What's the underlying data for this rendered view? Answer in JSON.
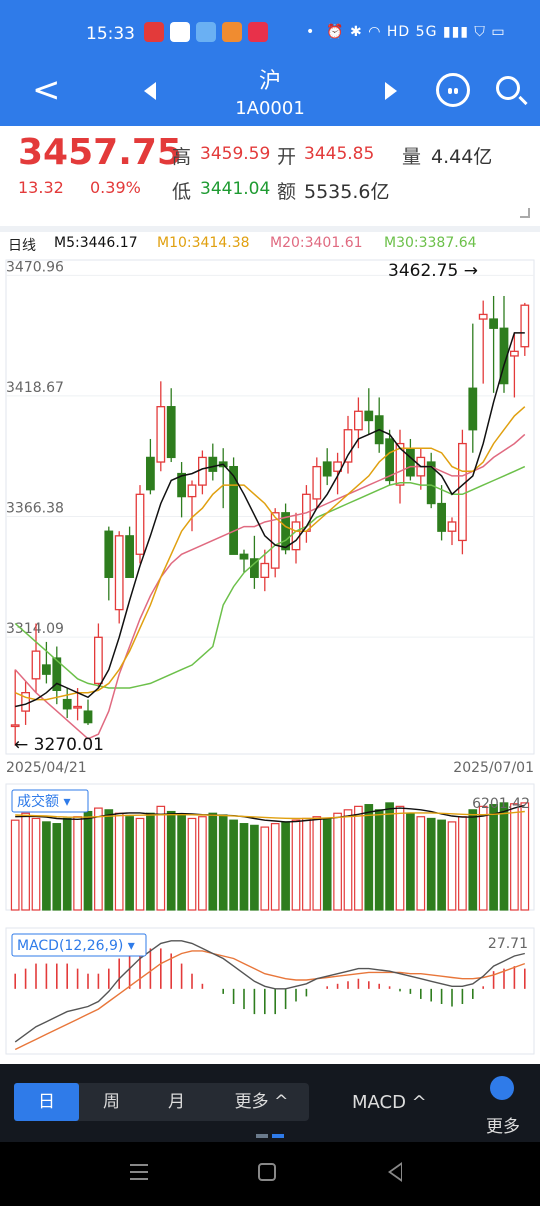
{
  "status": {
    "time": "15:33",
    "signal": "HD 5G",
    "dot": "•"
  },
  "header": {
    "title": "沪",
    "code": "1A0001"
  },
  "quote": {
    "price": "3457.75",
    "change": "13.32",
    "change_pct": "0.39%",
    "high_label": "高",
    "high": "3459.59",
    "open_label": "开",
    "open": "3445.85",
    "volume_label": "量",
    "volume": "4.44亿",
    "low_label": "低",
    "low": "3441.04",
    "amount_label": "额",
    "amount": "5535.6亿"
  },
  "ma": {
    "period": "日线",
    "m5": "M5:3446.17",
    "m10": "M10:3414.38",
    "m20": "M20:3401.61",
    "m30": "M30:3387.64"
  },
  "colors": {
    "m5": "#111111",
    "m10": "#e0a010",
    "m20": "#e06a80",
    "m30": "#6cc04a",
    "up": "#e33a3a",
    "down": "#2e7d1e",
    "accent": "#2f7be9"
  },
  "chart_data": [
    {
      "type": "candlestick",
      "y_ticks": [
        "3470.96",
        "3418.67",
        "3366.38",
        "3314.09"
      ],
      "ylim": [
        3266,
        3475
      ],
      "x_ticks": [
        "2025/04/21",
        "2025/07/01"
      ],
      "annotations": {
        "high": "3462.75",
        "low": "3270.01"
      },
      "candles": [
        [
          3276,
          3300,
          3267,
          3276
        ],
        [
          3282,
          3295,
          3276,
          3290
        ],
        [
          3296,
          3320,
          3290,
          3308
        ],
        [
          3302,
          3312,
          3294,
          3298
        ],
        [
          3305,
          3310,
          3285,
          3291
        ],
        [
          3287,
          3292,
          3279,
          3283
        ],
        [
          3284,
          3292,
          3278,
          3284
        ],
        [
          3282,
          3287,
          3276,
          3277
        ],
        [
          3294,
          3320,
          3292,
          3314
        ],
        [
          3360,
          3362,
          3330,
          3340
        ],
        [
          3326,
          3360,
          3320,
          3358
        ],
        [
          3358,
          3362,
          3340,
          3340
        ],
        [
          3350,
          3380,
          3346,
          3376
        ],
        [
          3392,
          3400,
          3376,
          3378
        ],
        [
          3390,
          3425,
          3386,
          3414
        ],
        [
          3414,
          3422,
          3390,
          3392
        ],
        [
          3385,
          3390,
          3366,
          3375
        ],
        [
          3375,
          3382,
          3360,
          3380
        ],
        [
          3380,
          3395,
          3376,
          3392
        ],
        [
          3392,
          3398,
          3382,
          3386
        ],
        [
          3390,
          3396,
          3370,
          3388
        ],
        [
          3388,
          3392,
          3350,
          3350
        ],
        [
          3350,
          3352,
          3342,
          3348
        ],
        [
          3348,
          3358,
          3335,
          3340
        ],
        [
          3340,
          3352,
          3334,
          3346
        ],
        [
          3344,
          3370,
          3340,
          3368
        ],
        [
          3368,
          3372,
          3350,
          3352
        ],
        [
          3352,
          3368,
          3346,
          3364
        ],
        [
          3360,
          3380,
          3355,
          3376
        ],
        [
          3374,
          3392,
          3370,
          3388
        ],
        [
          3390,
          3396,
          3380,
          3384
        ],
        [
          3386,
          3394,
          3376,
          3390
        ],
        [
          3390,
          3410,
          3385,
          3404
        ],
        [
          3404,
          3418,
          3396,
          3412
        ],
        [
          3412,
          3422,
          3402,
          3408
        ],
        [
          3410,
          3418,
          3394,
          3398
        ],
        [
          3400,
          3404,
          3380,
          3382
        ],
        [
          3380,
          3404,
          3372,
          3398
        ],
        [
          3396,
          3400,
          3382,
          3384
        ],
        [
          3384,
          3396,
          3378,
          3392
        ],
        [
          3390,
          3394,
          3370,
          3372
        ],
        [
          3372,
          3380,
          3356,
          3360
        ],
        [
          3360,
          3366,
          3354,
          3364
        ],
        [
          3356,
          3404,
          3350,
          3398
        ],
        [
          3422,
          3450,
          3394,
          3404
        ],
        [
          3452,
          3460,
          3424,
          3454
        ],
        [
          3452,
          3462,
          3420,
          3448
        ],
        [
          3448,
          3462,
          3420,
          3424
        ],
        [
          3436,
          3446,
          3418,
          3438
        ],
        [
          3440,
          3459,
          3436,
          3458
        ]
      ],
      "ma5": [
        3284,
        3285,
        3287,
        3290,
        3294,
        3292,
        3290,
        3288,
        3292,
        3300,
        3314,
        3330,
        3345,
        3358,
        3372,
        3382,
        3384,
        3385,
        3387,
        3388,
        3389,
        3384,
        3376,
        3367,
        3358,
        3354,
        3353,
        3356,
        3362,
        3370,
        3376,
        3384,
        3393,
        3400,
        3402,
        3404,
        3402,
        3396,
        3392,
        3388,
        3388,
        3384,
        3376,
        3380,
        3384,
        3398,
        3416,
        3432,
        3446,
        3446
      ],
      "ma10": [
        3290,
        3288,
        3287,
        3287,
        3288,
        3289,
        3290,
        3290,
        3291,
        3294,
        3300,
        3308,
        3318,
        3328,
        3340,
        3350,
        3360,
        3366,
        3370,
        3376,
        3380,
        3380,
        3380,
        3376,
        3372,
        3366,
        3362,
        3360,
        3360,
        3364,
        3368,
        3372,
        3376,
        3380,
        3384,
        3390,
        3394,
        3396,
        3396,
        3396,
        3396,
        3394,
        3388,
        3386,
        3386,
        3390,
        3398,
        3404,
        3410,
        3414
      ],
      "ma20": [
        3300,
        3295,
        3290,
        3286,
        3282,
        3278,
        3274,
        3270,
        3272,
        3282,
        3298,
        3310,
        3322,
        3332,
        3340,
        3346,
        3350,
        3352,
        3354,
        3356,
        3358,
        3360,
        3362,
        3362,
        3364,
        3365,
        3366,
        3367,
        3368,
        3370,
        3372,
        3374,
        3376,
        3378,
        3380,
        3382,
        3384,
        3386,
        3388,
        3388,
        3388,
        3386,
        3384,
        3384,
        3386,
        3388,
        3392,
        3395,
        3398,
        3402
      ],
      "ma30": [
        3320,
        3316,
        3312,
        3308,
        3304,
        3300,
        3296,
        3294,
        3293,
        3292,
        3292,
        3292,
        3293,
        3294,
        3296,
        3298,
        3300,
        3302,
        3306,
        3310,
        3328,
        3336,
        3342,
        3346,
        3350,
        3354,
        3356,
        3360,
        3362,
        3366,
        3368,
        3370,
        3372,
        3374,
        3376,
        3378,
        3380,
        3381,
        3381,
        3380,
        3380,
        3378,
        3376,
        3376,
        3378,
        3380,
        3382,
        3384,
        3386,
        3388
      ]
    },
    {
      "type": "bar",
      "title": "成交额",
      "value_label": "6201.42",
      "values": [
        5200,
        5600,
        5300,
        5100,
        5000,
        5300,
        5400,
        5700,
        5900,
        5800,
        5600,
        5400,
        5300,
        5600,
        6000,
        5700,
        5500,
        5300,
        5400,
        5600,
        5500,
        5200,
        5000,
        4900,
        4800,
        5000,
        5100,
        5200,
        5300,
        5400,
        5300,
        5600,
        5800,
        6000,
        6100,
        5800,
        6200,
        6000,
        5600,
        5400,
        5300,
        5200,
        5100,
        5400,
        5800,
        6000,
        6100,
        6200,
        6150,
        6201
      ],
      "series": [
        {
          "name": "MA5",
          "values": [
            5400,
            5420,
            5420,
            5380,
            5300,
            5260,
            5250,
            5300,
            5400,
            5500,
            5580,
            5620,
            5620,
            5560,
            5540,
            5560,
            5580,
            5560,
            5520,
            5500,
            5480,
            5460,
            5400,
            5300,
            5200,
            5150,
            5100,
            5120,
            5180,
            5240,
            5300,
            5360,
            5440,
            5540,
            5660,
            5760,
            5860,
            5900,
            5860,
            5800,
            5700,
            5560,
            5440,
            5380,
            5380,
            5440,
            5560,
            5700,
            5900,
            6060
          ]
        },
        {
          "name": "MA10",
          "values": [
            5500,
            5480,
            5460,
            5440,
            5400,
            5380,
            5370,
            5380,
            5400,
            5430,
            5460,
            5480,
            5490,
            5500,
            5510,
            5520,
            5520,
            5510,
            5500,
            5490,
            5470,
            5450,
            5420,
            5390,
            5360,
            5330,
            5310,
            5300,
            5300,
            5310,
            5330,
            5360,
            5400,
            5440,
            5480,
            5520,
            5560,
            5600,
            5620,
            5620,
            5620,
            5600,
            5570,
            5540,
            5520,
            5520,
            5540,
            5580,
            5640,
            5700
          ]
        }
      ]
    },
    {
      "type": "macd",
      "title": "MACD(12,26,9)",
      "value_label": "27.71",
      "dif": [
        -42,
        -36,
        -30,
        -26,
        -22,
        -18,
        -16,
        -14,
        -10,
        -2,
        8,
        16,
        24,
        30,
        36,
        38,
        38,
        36,
        32,
        28,
        24,
        18,
        12,
        6,
        2,
        0,
        0,
        2,
        4,
        8,
        10,
        12,
        14,
        16,
        16,
        15,
        14,
        12,
        10,
        8,
        6,
        4,
        2,
        2,
        4,
        10,
        18,
        22,
        26,
        28
      ],
      "dea": [
        -48,
        -44,
        -40,
        -36,
        -32,
        -28,
        -24,
        -20,
        -16,
        -10,
        -4,
        2,
        8,
        14,
        20,
        24,
        28,
        30,
        30,
        28,
        26,
        24,
        20,
        16,
        12,
        10,
        8,
        7,
        7,
        8,
        9,
        10,
        11,
        12,
        13,
        13,
        13,
        13,
        12,
        12,
        11,
        10,
        9,
        8,
        8,
        9,
        11,
        14,
        17,
        20
      ],
      "hist": [
        12,
        16,
        20,
        20,
        20,
        20,
        16,
        12,
        12,
        16,
        24,
        28,
        32,
        32,
        32,
        28,
        20,
        12,
        4,
        0,
        -4,
        -12,
        -16,
        -20,
        -20,
        -20,
        -16,
        -10,
        -6,
        0,
        2,
        4,
        6,
        8,
        6,
        4,
        2,
        -2,
        -4,
        -8,
        -10,
        -12,
        -14,
        -12,
        -8,
        2,
        14,
        16,
        18,
        16
      ]
    }
  ],
  "tabs": [
    {
      "label": "日"
    },
    {
      "label": "周"
    },
    {
      "label": "月"
    },
    {
      "label": "更多 ^"
    }
  ],
  "bottom": {
    "indicator": "MACD ^",
    "more": "更多"
  }
}
